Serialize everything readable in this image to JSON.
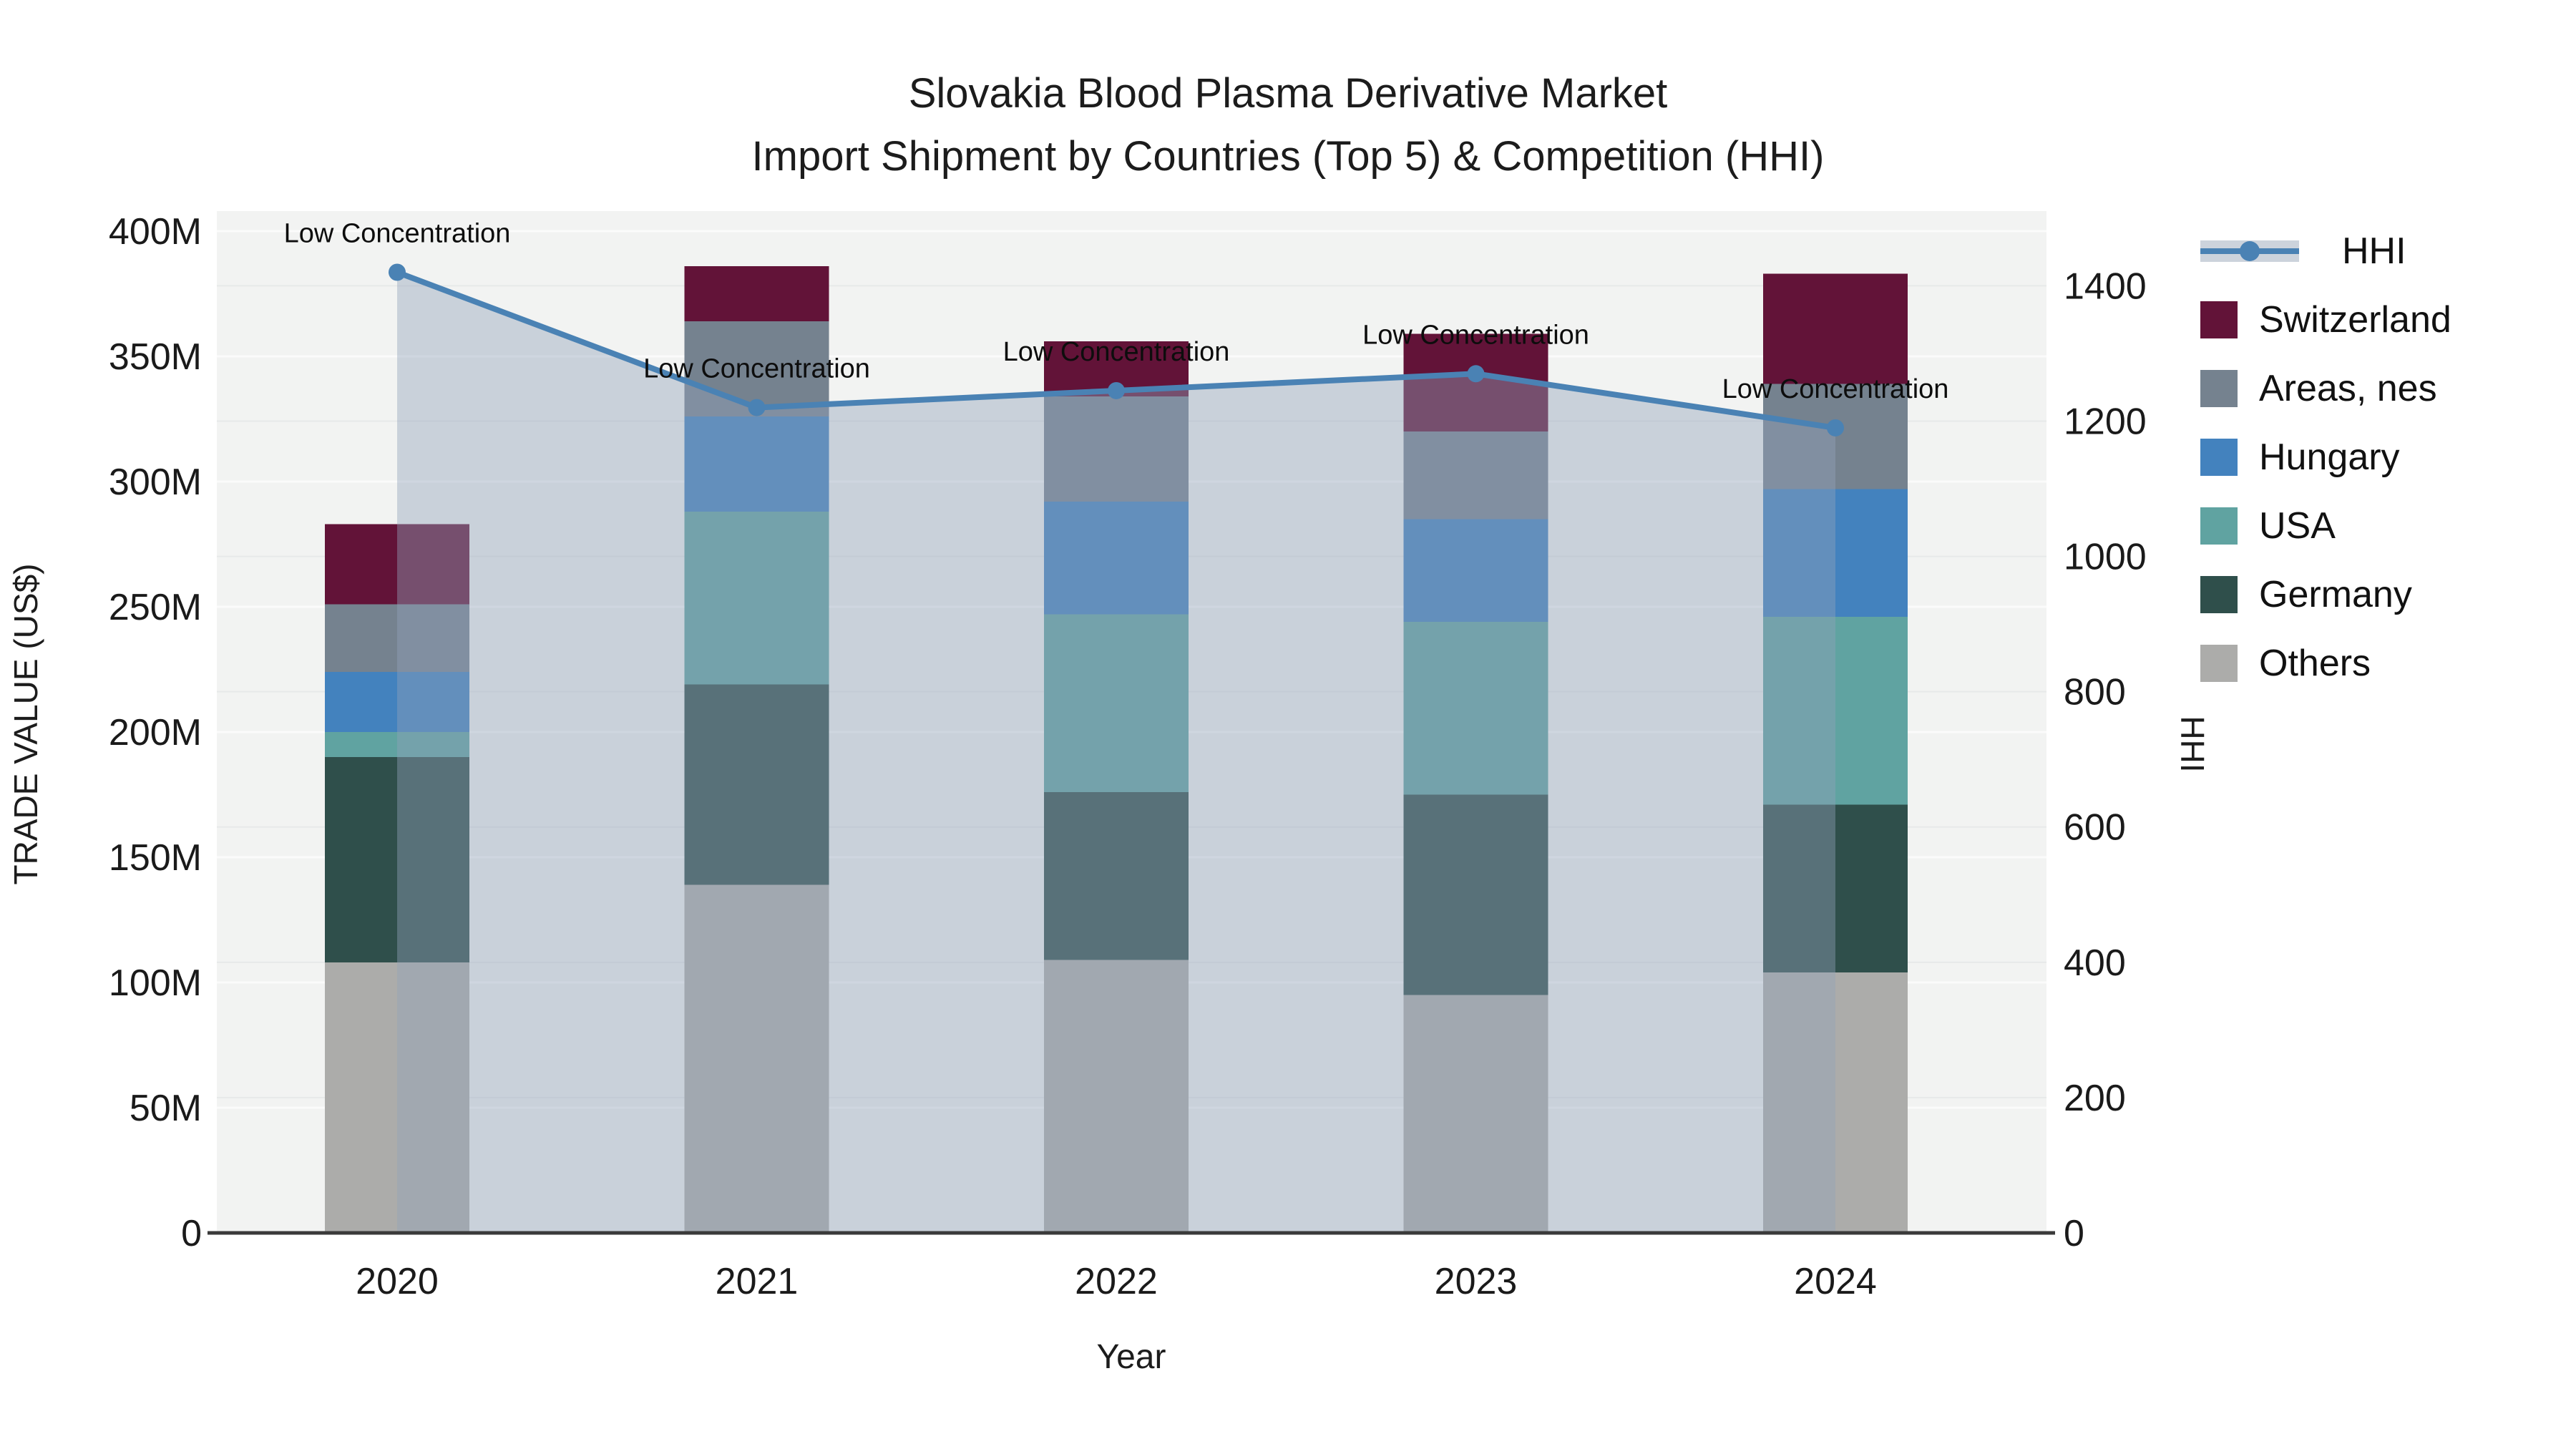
{
  "title": {
    "line1": "Slovakia Blood Plasma Derivative Market",
    "line2": "Import Shipment by Countries (Top 5) & Competition (HHI)"
  },
  "legend": {
    "items": [
      {
        "label": "HHI",
        "type": "line",
        "color": "#4A82B4"
      },
      {
        "label": "Switzerland",
        "type": "box",
        "color": "#621338"
      },
      {
        "label": "Areas, nes",
        "type": "box",
        "color": "#75828F"
      },
      {
        "label": "Hungary",
        "type": "box",
        "color": "#4382BE"
      },
      {
        "label": "USA",
        "type": "box",
        "color": "#60A3A1"
      },
      {
        "label": "Germany",
        "type": "box",
        "color": "#2F4F4B"
      },
      {
        "label": "Others",
        "type": "box",
        "color": "#ACACAA"
      }
    ]
  },
  "chart_data": {
    "type": "stacked-bar+line",
    "title": "Slovakia Blood Plasma Derivative Market — Import Shipment by Countries (Top 5) & Competition (HHI)",
    "categories": [
      "2020",
      "2021",
      "2022",
      "2023",
      "2024"
    ],
    "x_label": "Year",
    "values_unit": "US$ millions",
    "series": [
      {
        "name": "Others",
        "color": "#ACACAA",
        "values": [
          108,
          139,
          109,
          95,
          104
        ]
      },
      {
        "name": "Germany",
        "color": "#2F4F4B",
        "values": [
          82,
          80,
          67,
          80,
          67
        ]
      },
      {
        "name": "USA",
        "color": "#60A3A1",
        "values": [
          10,
          69,
          71,
          69,
          75
        ]
      },
      {
        "name": "Hungary",
        "color": "#4382BE",
        "values": [
          24,
          38,
          45,
          41,
          51
        ]
      },
      {
        "name": "Areas, nes",
        "color": "#75828F",
        "values": [
          27,
          38,
          42,
          35,
          42
        ]
      },
      {
        "name": "Switzerland",
        "color": "#621338",
        "values": [
          32,
          22,
          22,
          39,
          44
        ]
      }
    ],
    "bar_totals": [
      283,
      386,
      356,
      359,
      383
    ],
    "line": {
      "name": "HHI",
      "color": "#4A82B4",
      "area_fill": "rgba(145,163,186,0.42)",
      "values": [
        1420,
        1220,
        1245,
        1270,
        1190
      ],
      "annotation": "Low Concentration"
    },
    "y_left": {
      "label": "TRADE VALUE (US$)",
      "min": 0,
      "max": 400,
      "ticks": [
        0,
        50,
        100,
        150,
        200,
        250,
        300,
        350,
        400
      ],
      "tick_labels": [
        "0",
        "50M",
        "100M",
        "150M",
        "200M",
        "250M",
        "300M",
        "350M",
        "400M"
      ]
    },
    "y_right": {
      "label": "HHI",
      "min": 0,
      "max": 1400,
      "ticks": [
        0,
        200,
        400,
        600,
        800,
        1000,
        1200,
        1400
      ],
      "tick_labels": [
        "0",
        "200",
        "400",
        "600",
        "800",
        "1000",
        "1200",
        "1400"
      ]
    },
    "grid": true,
    "legend_position": "right"
  }
}
